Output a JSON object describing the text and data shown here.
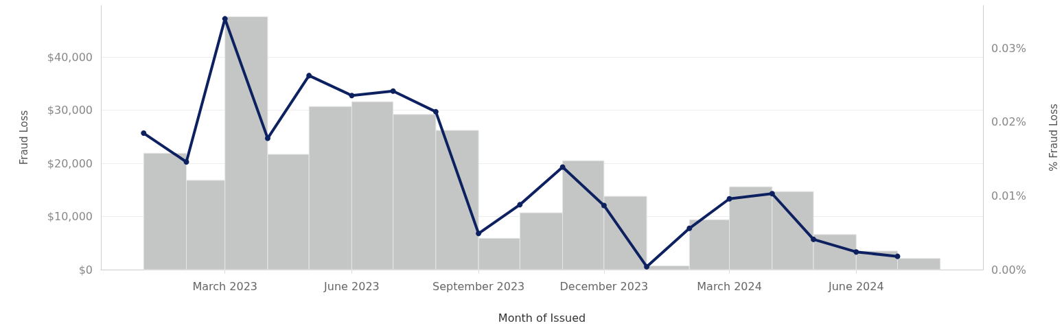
{
  "chart_data": {
    "type": "bar",
    "xlabel": "Month of Issued",
    "ylabel": "Fraud Loss",
    "y2label": "% Fraud Loss",
    "x": [
      "2023-01",
      "2023-02",
      "2023-03",
      "2023-04",
      "2023-05",
      "2023-06",
      "2023-07",
      "2023-08",
      "2023-09",
      "2023-10",
      "2023-11",
      "2023-12",
      "2024-01",
      "2024-02",
      "2024-03",
      "2024-04",
      "2024-05",
      "2024-06",
      "2024-07"
    ],
    "series": [
      {
        "color": "#c4c6c5",
        "x": [
          "2023-01-16",
          "2023-02-15",
          "2023-03-16",
          "2023-04-16",
          "2023-05-16",
          "2023-06-16",
          "2023-07-16",
          "2023-08-16",
          "2023-09-16",
          "2023-10-16",
          "2023-11-16",
          "2023-12-16",
          "2024-01-16",
          "2024-02-15",
          "2024-03-16",
          "2024-04-16",
          "2024-05-16",
          "2024-06-16",
          "2024-07-16"
        ],
        "values": [
          21900,
          16800,
          47600,
          21700,
          30700,
          31600,
          29200,
          26200,
          5900,
          10700,
          20500,
          13800,
          700,
          9400,
          15600,
          14700,
          6600,
          3500,
          2100
        ]
      },
      {
        "type": "line",
        "axis": "y2",
        "color": "#0d2160",
        "values": [
          0.0185,
          0.0146,
          0.034,
          0.0178,
          0.0263,
          0.0236,
          0.0242,
          0.0214,
          0.0049,
          0.0088,
          0.0139,
          0.0087,
          0.0004,
          0.0056,
          0.0096,
          0.0103,
          0.0041,
          0.0024,
          0.0018
        ]
      }
    ],
    "xlim": [
      "2022-12",
      "2024-09"
    ],
    "xticks": [
      {
        "value": "2023-03",
        "label": "March 2023"
      },
      {
        "value": "2023-06",
        "label": "June 2023"
      },
      {
        "value": "2023-09",
        "label": "September 2023"
      },
      {
        "value": "2023-12",
        "label": "December 2023"
      },
      {
        "value": "2024-03",
        "label": "March 2024"
      },
      {
        "value": "2024-06",
        "label": "June 2024"
      }
    ],
    "ylim": [
      0,
      49700
    ],
    "yticks": [
      {
        "value": 0,
        "label": "$0"
      },
      {
        "value": 10000,
        "label": "$10,000"
      },
      {
        "value": 20000,
        "label": "$20,000"
      },
      {
        "value": 30000,
        "label": "$30,000"
      },
      {
        "value": 40000,
        "label": "$40,000"
      }
    ],
    "y2lim": [
      0,
      0.0358
    ],
    "y2ticks": [
      {
        "value": 0,
        "label": "0.00%"
      },
      {
        "value": 0.01,
        "label": "0.01%"
      },
      {
        "value": 0.02,
        "label": "0.02%"
      },
      {
        "value": 0.03,
        "label": "0.03%"
      }
    ],
    "grid": "y",
    "marker": "circle",
    "line_style": "solid"
  }
}
